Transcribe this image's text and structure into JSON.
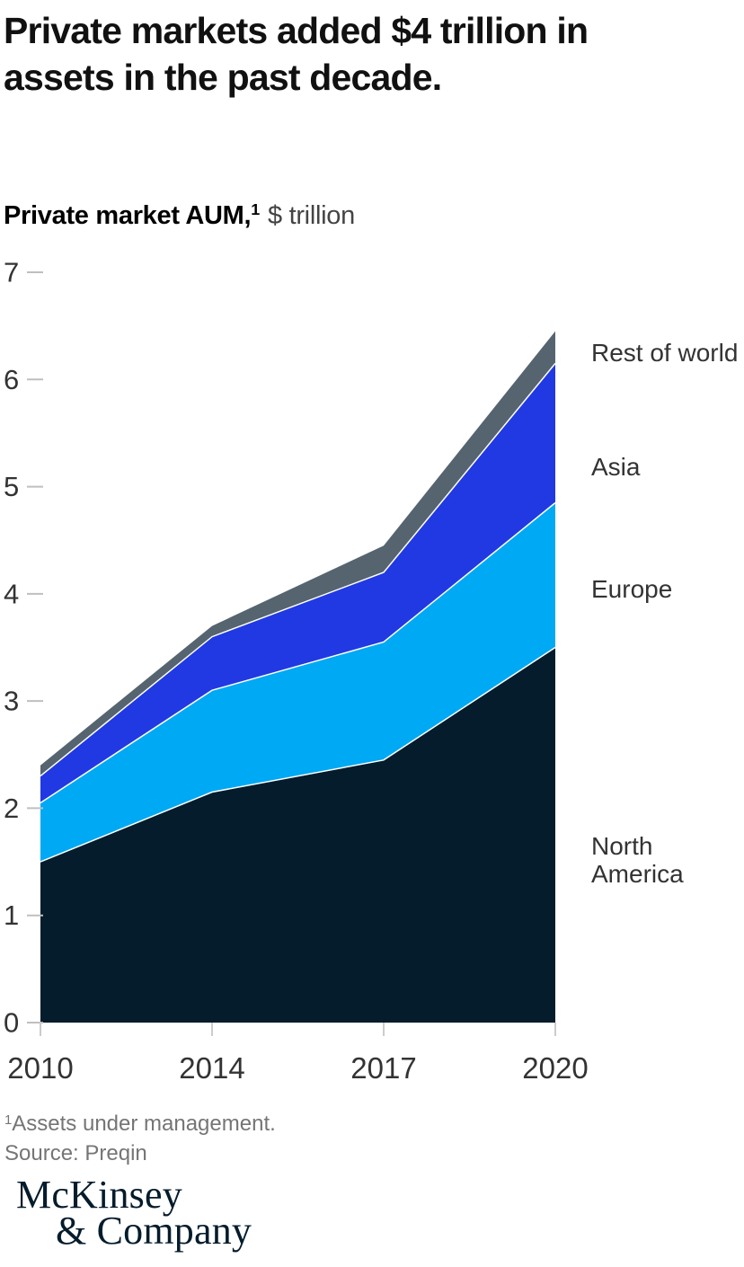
{
  "header": {
    "title_lines": [
      "Private markets added $4 trillion in",
      "assets in the past decade."
    ]
  },
  "subtitle": {
    "bold": "Private market AUM,",
    "sup": "1",
    "rest": "$ trillion"
  },
  "chart_data": {
    "type": "area",
    "stacked": true,
    "x_labels": [
      "2010",
      "2014",
      "2017",
      "2020"
    ],
    "series": [
      {
        "name": "North America",
        "color": "#051c2c",
        "values": [
          1.5,
          2.15,
          2.45,
          3.5
        ]
      },
      {
        "name": "Europe",
        "color": "#00a9f4",
        "values": [
          0.55,
          0.95,
          1.1,
          1.35
        ]
      },
      {
        "name": "Asia",
        "color": "#2139e3",
        "values": [
          0.25,
          0.5,
          0.65,
          1.3
        ]
      },
      {
        "name": "Rest of world",
        "color": "#55646f",
        "values": [
          0.1,
          0.1,
          0.25,
          0.3
        ]
      }
    ],
    "totals": [
      2.4,
      3.7,
      4.45,
      6.45
    ],
    "title": "Private market AUM, $ trillion",
    "xlabel": "",
    "ylabel": "$ trillion",
    "ylim": [
      0,
      7
    ],
    "yticks": [
      0,
      1,
      2,
      3,
      4,
      5,
      6,
      7
    ],
    "grid": false,
    "legend_position": "right"
  },
  "footnotes": {
    "note1_sup": "1",
    "note1_text": "Assets under management.",
    "source": "Source: Preqin"
  },
  "logo": {
    "line1": "McKinsey",
    "line2": "& Company"
  },
  "colors": {
    "axis_text": "#333333",
    "ytick_dash": "#bfbfbf",
    "xtick_line": "#cccccc",
    "separator": "#ffffff",
    "footnote_text": "#757575",
    "logo_navy": "#051c2c"
  }
}
